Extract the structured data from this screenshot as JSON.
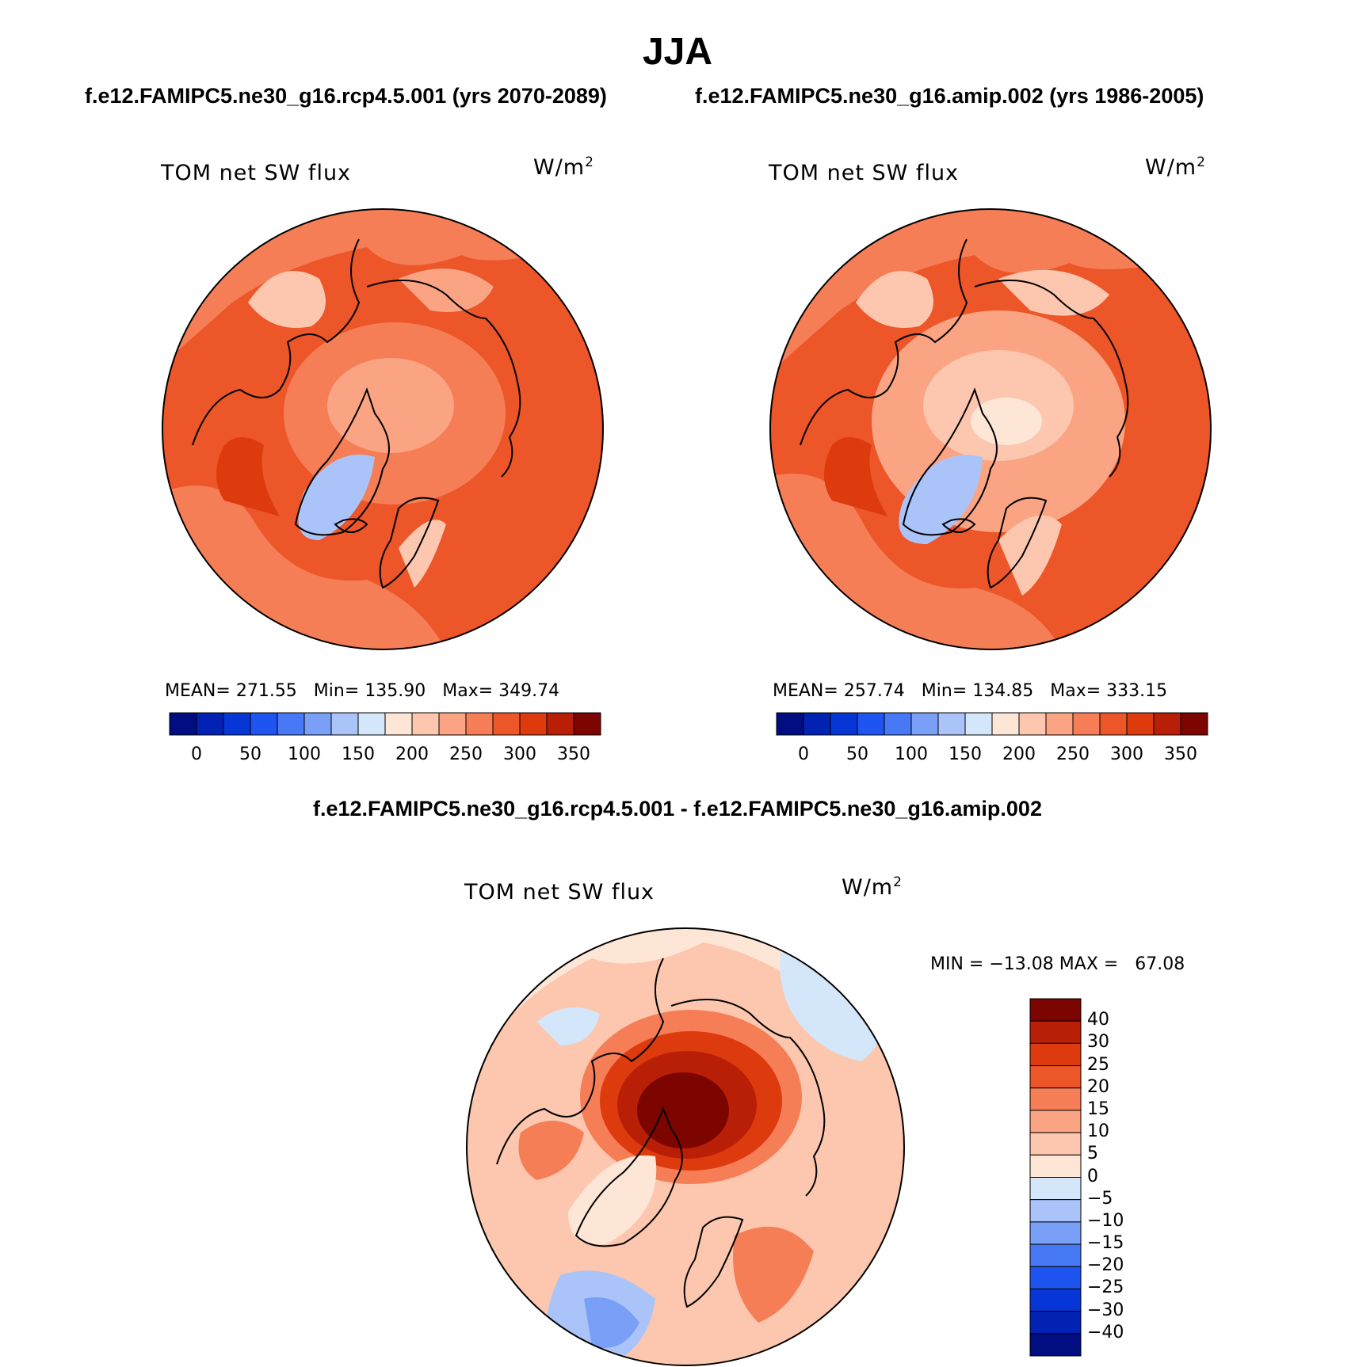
{
  "title": "JJA",
  "case_titles": {
    "left": "f.e12.FAMIPC5.ne30_g16.rcp4.5.001 (yrs 2070-2089)",
    "right": "f.e12.FAMIPC5.ne30_g16.amip.002 (yrs 1986-2005)"
  },
  "diff_title": "f.e12.FAMIPC5.ne30_g16.rcp4.5.001 - f.e12.FAMIPC5.ne30_g16.amip.002",
  "colors": {
    "sequential": [
      "#000e82",
      "#0222b4",
      "#0637d6",
      "#1e54f0",
      "#4879f4",
      "#7a9ff7",
      "#aac4fa",
      "#d4e6fa",
      "#fde6d6",
      "#fcc7ae",
      "#fba484",
      "#f67e56",
      "#ec5628",
      "#dd3a0e",
      "#b91f06",
      "#7d0500"
    ],
    "diverging_bottom_to_top": [
      "#000e82",
      "#0222b4",
      "#0637d6",
      "#1e54f0",
      "#4879f4",
      "#7a9ff7",
      "#aac4fa",
      "#d4e6fa",
      "#fde6d6",
      "#fcc7ae",
      "#fba484",
      "#f67e56",
      "#ec5628",
      "#dd3a0e",
      "#b91f06",
      "#7d0500"
    ],
    "land_outline": "#000000"
  },
  "chart_data": [
    {
      "type": "heatmap",
      "panel": "top-left",
      "projection": "north polar stereographic",
      "variable": "TOM net SW flux",
      "units": "W/m",
      "units_sup": "2",
      "mean_label": "MEAN=",
      "mean": "271.55",
      "min_label": "Min=",
      "min": "135.90",
      "max_label": "Max=",
      "max": "349.74",
      "colorbar": {
        "orientation": "horizontal",
        "levels": [
          "0",
          "50",
          "100",
          "150",
          "200",
          "250",
          "300",
          "350"
        ]
      }
    },
    {
      "type": "heatmap",
      "panel": "top-right",
      "projection": "north polar stereographic",
      "variable": "TOM net SW flux",
      "units": "W/m",
      "units_sup": "2",
      "mean_label": "MEAN=",
      "mean": "257.74",
      "min_label": "Min=",
      "min": "134.85",
      "max_label": "Max=",
      "max": "333.15",
      "colorbar": {
        "orientation": "horizontal",
        "levels": [
          "0",
          "50",
          "100",
          "150",
          "200",
          "250",
          "300",
          "350"
        ]
      }
    },
    {
      "type": "heatmap",
      "panel": "bottom-difference",
      "projection": "north polar stereographic",
      "variable": "TOM net SW flux",
      "units": "W/m",
      "units_sup": "2",
      "min_label": "MIN =",
      "min": "−13.08",
      "max_label": "MAX =",
      "max": "67.08",
      "colorbar": {
        "orientation": "vertical",
        "levels_top_to_bottom": [
          "40",
          "30",
          "25",
          "20",
          "15",
          "10",
          "5",
          "0",
          "−5",
          "−10",
          "−15",
          "−20",
          "−25",
          "−30",
          "−40"
        ]
      }
    }
  ]
}
